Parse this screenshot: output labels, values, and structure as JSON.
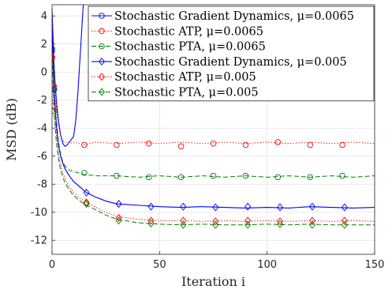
{
  "chart_data": {
    "type": "line",
    "xlabel": "Iteration i",
    "ylabel": "MSD (dB)",
    "xlim": [
      0,
      150
    ],
    "ylim": [
      -13,
      4.8
    ],
    "xticks": [
      0,
      50,
      100,
      150
    ],
    "yticks": [
      -12,
      -10,
      -8,
      -6,
      -4,
      -2,
      0,
      2,
      4
    ],
    "grid": true,
    "legend_position": "top-right",
    "series": [
      {
        "name": "Stochastic Gradient Dynamics, μ=0.0065",
        "color": "#0000ff",
        "dash": "solid",
        "marker": "circle",
        "x": [
          0,
          1,
          2,
          3,
          4,
          5,
          6,
          7,
          8,
          9,
          10,
          11,
          12,
          13,
          14,
          15
        ],
        "y": [
          4.5,
          0.2,
          -2.0,
          -3.5,
          -4.5,
          -5.1,
          -5.3,
          -5.2,
          -5.0,
          -4.8,
          -4.6,
          -3.5,
          -1.5,
          1.0,
          3.5,
          6.0
        ],
        "marker_x": [
          0
        ],
        "marker_y": [
          1.5
        ]
      },
      {
        "name": "Stochastic ATP, μ=0.0065",
        "color": "#ff0000",
        "dash": "dotted",
        "marker": "circle",
        "x": [
          0,
          1,
          2,
          3,
          4,
          5,
          6,
          8,
          10,
          15,
          20,
          30,
          40,
          50,
          60,
          70,
          80,
          90,
          100,
          110,
          120,
          130,
          140,
          150
        ],
        "y": [
          2.5,
          -1.0,
          -2.6,
          -3.8,
          -4.5,
          -4.9,
          -5.0,
          -5.1,
          -5.0,
          -5.2,
          -5.0,
          -5.1,
          -5.0,
          -5.1,
          -5.0,
          -5.1,
          -5.0,
          -5.1,
          -5.0,
          -5.1,
          -5.0,
          -5.1,
          -5.0,
          -5.1
        ],
        "marker_x": [
          0,
          1,
          15,
          30,
          45,
          60,
          75,
          90,
          105,
          120,
          135
        ],
        "marker_y": [
          1.0,
          -2.4,
          -5.2,
          -5.2,
          -5.1,
          -5.3,
          -5.1,
          -5.2,
          -5.0,
          -5.2,
          -5.2
        ]
      },
      {
        "name": "Stochastic PTA, μ=0.0065",
        "color": "#008000",
        "dash": "dashed",
        "marker": "circle",
        "x": [
          0,
          1,
          2,
          3,
          4,
          5,
          6,
          8,
          10,
          15,
          20,
          30,
          40,
          50,
          60,
          70,
          80,
          90,
          100,
          110,
          120,
          130,
          140,
          150
        ],
        "y": [
          2.0,
          -1.5,
          -3.5,
          -5.0,
          -5.9,
          -6.4,
          -6.7,
          -7.0,
          -7.1,
          -7.3,
          -7.4,
          -7.4,
          -7.5,
          -7.4,
          -7.5,
          -7.4,
          -7.5,
          -7.4,
          -7.5,
          -7.4,
          -7.5,
          -7.4,
          -7.5,
          -7.4
        ],
        "marker_x": [
          0,
          1,
          15,
          30,
          45,
          60,
          75,
          90,
          105,
          120,
          135
        ],
        "marker_y": [
          -0.5,
          -2.8,
          -7.2,
          -7.4,
          -7.5,
          -7.5,
          -7.4,
          -7.4,
          -7.5,
          -7.5,
          -7.4
        ]
      },
      {
        "name": "Stochastic Gradient Dynamics, μ=0.005",
        "color": "#0000ff",
        "dash": "solid",
        "marker": "diamond",
        "x": [
          0,
          1,
          2,
          3,
          4,
          5,
          6,
          8,
          10,
          13,
          16,
          20,
          25,
          30,
          40,
          50,
          60,
          70,
          80,
          90,
          100,
          110,
          120,
          130,
          140,
          150
        ],
        "y": [
          3.0,
          -1.5,
          -3.8,
          -5.2,
          -6.0,
          -6.5,
          -6.9,
          -7.4,
          -7.8,
          -8.2,
          -8.6,
          -8.9,
          -9.2,
          -9.4,
          -9.5,
          -9.6,
          -9.65,
          -9.6,
          -9.65,
          -9.7,
          -9.65,
          -9.7,
          -9.6,
          -9.65,
          -9.7,
          -9.65
        ],
        "marker_x": [
          0,
          1,
          16,
          31,
          46,
          61,
          76,
          91,
          106,
          121,
          136
        ],
        "marker_y": [
          1.7,
          -1.2,
          -8.6,
          -9.4,
          -9.6,
          -9.6,
          -9.65,
          -9.6,
          -9.65,
          -9.6,
          -9.65
        ]
      },
      {
        "name": "Stochastic ATP, μ=0.005",
        "color": "#ff0000",
        "dash": "dotted",
        "marker": "diamond",
        "x": [
          0,
          1,
          2,
          3,
          4,
          5,
          6,
          8,
          10,
          13,
          16,
          20,
          25,
          30,
          40,
          50,
          60,
          70,
          80,
          90,
          100,
          110,
          120,
          130,
          140,
          150
        ],
        "y": [
          2.0,
          -2.5,
          -4.5,
          -5.8,
          -6.6,
          -7.2,
          -7.6,
          -8.2,
          -8.6,
          -9.0,
          -9.3,
          -9.6,
          -10.0,
          -10.3,
          -10.5,
          -10.6,
          -10.6,
          -10.65,
          -10.6,
          -10.65,
          -10.6,
          -10.65,
          -10.6,
          -10.65,
          -10.6,
          -10.65
        ],
        "marker_x": [
          0,
          1,
          16,
          31,
          46,
          61,
          76,
          91,
          106,
          121,
          136
        ],
        "marker_y": [
          1.1,
          -1.0,
          -9.3,
          -10.4,
          -10.6,
          -10.6,
          -10.65,
          -10.6,
          -10.65,
          -10.6,
          -10.6
        ]
      },
      {
        "name": "Stochastic PTA, μ=0.005",
        "color": "#008000",
        "dash": "dashed",
        "marker": "diamond",
        "x": [
          0,
          1,
          2,
          3,
          4,
          5,
          6,
          8,
          10,
          13,
          16,
          20,
          25,
          30,
          40,
          50,
          60,
          70,
          80,
          90,
          100,
          110,
          120,
          130,
          140,
          150
        ],
        "y": [
          1.5,
          -3.0,
          -5.0,
          -6.2,
          -7.0,
          -7.5,
          -7.9,
          -8.4,
          -8.8,
          -9.2,
          -9.5,
          -9.8,
          -10.2,
          -10.5,
          -10.75,
          -10.85,
          -10.9,
          -10.85,
          -10.9,
          -10.9,
          -10.85,
          -10.9,
          -10.85,
          -10.9,
          -10.9,
          -10.9
        ],
        "marker_x": [
          0,
          1,
          16,
          31,
          46,
          61,
          76,
          91,
          106,
          121,
          136
        ],
        "marker_y": [
          -0.5,
          -1.3,
          -9.4,
          -10.6,
          -10.8,
          -10.9,
          -10.9,
          -10.9,
          -10.85,
          -10.9,
          -10.9
        ]
      }
    ]
  }
}
